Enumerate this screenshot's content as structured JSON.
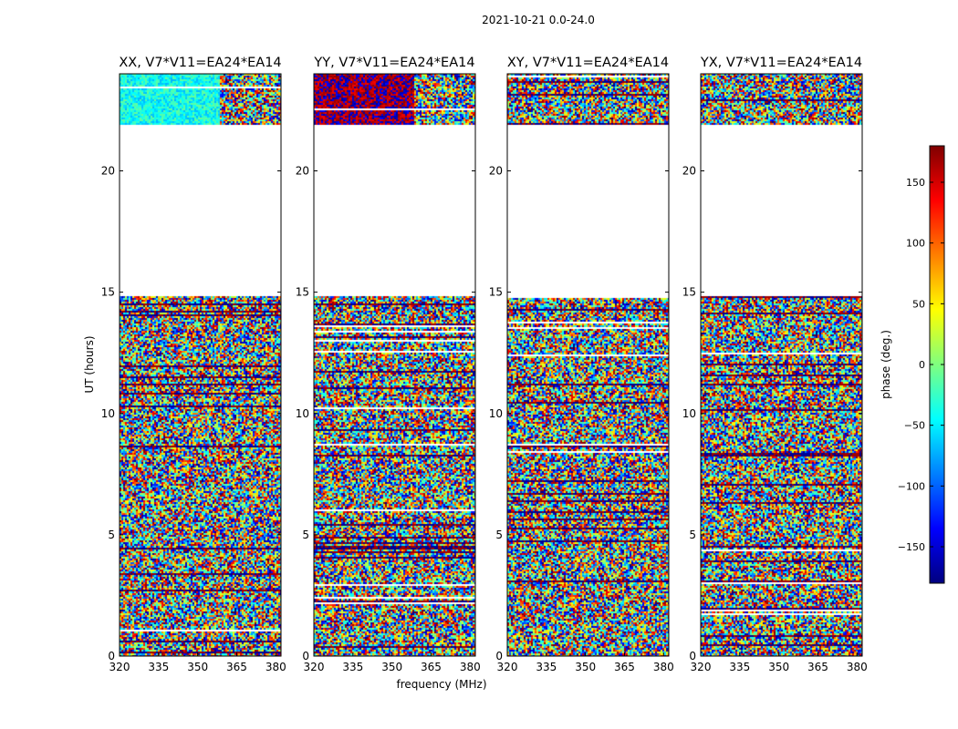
{
  "figure_title": "2021-10-21 0.0-24.0",
  "panels": [
    {
      "title": "XX, V7*V11=EA24*EA14",
      "key": "XX"
    },
    {
      "title": "YY, V7*V11=EA24*EA14",
      "key": "YY"
    },
    {
      "title": "XY, V7*V11=EA24*EA14",
      "key": "XY"
    },
    {
      "title": "YX, V7*V11=EA24*EA14",
      "key": "YX"
    }
  ],
  "xlabel": "frequency (MHz)",
  "ylabel": "UT (hours)",
  "colorbar_label": "phase (deg.)",
  "colors": {
    "cmap": [
      "#00007f",
      "#0000ff",
      "#007fff",
      "#00ffff",
      "#7fff7f",
      "#ffff00",
      "#ff7f00",
      "#ff0000",
      "#7f0000"
    ],
    "blank": "#ffffff"
  },
  "chart_data": {
    "type": "heatmap",
    "title": "2021-10-21 0.0-24.0",
    "xlabel": "frequency (MHz)",
    "ylabel": "UT (hours)",
    "xlim": [
      320,
      382
    ],
    "ylim": [
      0,
      24
    ],
    "xticks": [
      320,
      335,
      350,
      365,
      380
    ],
    "yticks": [
      0,
      5,
      10,
      15,
      20
    ],
    "colorbar": {
      "label": "phase (deg.)",
      "range": [
        -180,
        180
      ],
      "ticks": [
        -150,
        -100,
        -50,
        0,
        50,
        100,
        150
      ]
    },
    "no_data_intervals_hours": [
      [
        14.9,
        21.9
      ]
    ],
    "panels": [
      {
        "name": "XX, V7*V11=EA24*EA14",
        "notes": "mostly noise; 22-24 h band mostly -50 to 0 deg"
      },
      {
        "name": "YY, V7*V11=EA24*EA14",
        "notes": "mostly noise; 22-24 h band near +180 / -150 deg"
      },
      {
        "name": "XY, V7*V11=EA24*EA14",
        "notes": "phase noise across all times"
      },
      {
        "name": "YX, V7*V11=EA24*EA14",
        "notes": "phase noise across all times"
      }
    ]
  }
}
